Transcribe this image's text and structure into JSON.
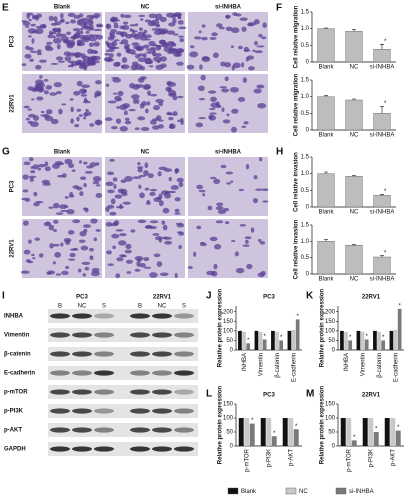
{
  "panel_labels": [
    "E",
    "F",
    "G",
    "H",
    "I",
    "J",
    "K",
    "L",
    "M"
  ],
  "micrographs": {
    "E": {
      "columns": [
        "Blank",
        "NC",
        "si-INHBA"
      ],
      "rows": [
        "PC3",
        "22RV1"
      ]
    },
    "G": {
      "columns": [
        "Blank",
        "NC",
        "si-INHBA"
      ],
      "rows": [
        "PC3",
        "22RV1"
      ]
    }
  },
  "blot": {
    "cell_lines": [
      "PC3",
      "22RV1"
    ],
    "lanes": [
      "B",
      "NC",
      "S",
      "B",
      "NC",
      "S"
    ],
    "proteins": [
      "INHBA",
      "Vimentin",
      "β-catenin",
      "E-cadherin",
      "p-mTOR",
      "p-PI3K",
      "p-AKT",
      "GAPDH"
    ]
  },
  "legend": [
    {
      "name": "Blank",
      "color": "#111111"
    },
    {
      "name": "NC",
      "color": "#c8c8c8"
    },
    {
      "name": "si-INHBA",
      "color": "#7a7a7a"
    }
  ],
  "chart_data": [
    {
      "type": "bar",
      "ylabel": "Cell relative migration",
      "categories": [
        "Blank",
        "NC",
        "si-INHBA"
      ],
      "values": [
        1.0,
        0.92,
        0.38
      ],
      "errors": [
        0.02,
        0.05,
        0.15
      ],
      "annotation": "*",
      "color": "#bdbdbd",
      "ylim": [
        0,
        1.5
      ],
      "yticks": [
        0,
        0.5,
        {
          "value": 1,
          "label": "1.0"
        },
        1.5
      ]
    },
    {
      "type": "bar",
      "ylabel": "Cell relative migration",
      "categories": [
        "Blank",
        "NC",
        "si-INHBA"
      ],
      "values": [
        1.0,
        0.9,
        0.5
      ],
      "errors": [
        0.03,
        0.03,
        0.2
      ],
      "annotation": "*",
      "color": "#bdbdbd",
      "ylim": [
        0,
        1.5
      ],
      "yticks": [
        0,
        0.5,
        {
          "value": 1,
          "label": "1.0"
        },
        1.5
      ]
    },
    {
      "type": "bar",
      "ylabel": "Cell relative invasion",
      "categories": [
        "Blank",
        "NC",
        "si-INHBA"
      ],
      "values": [
        1.0,
        0.92,
        0.35
      ],
      "errors": [
        0.05,
        0.02,
        0.03
      ],
      "annotation": "*",
      "color": "#bdbdbd",
      "ylim": [
        0,
        1.5
      ],
      "yticks": [
        0,
        0.5,
        {
          "value": 1,
          "label": "1.0"
        },
        1.5
      ]
    },
    {
      "type": "bar",
      "ylabel": "Cell relative invasion",
      "categories": [
        "Blank",
        "NC",
        "si-INHBA"
      ],
      "values": [
        1.0,
        0.88,
        0.52
      ],
      "errors": [
        0.05,
        0.02,
        0.04
      ],
      "annotation": "*",
      "color": "#bdbdbd",
      "ylim": [
        0,
        1.5
      ],
      "yticks": [
        0,
        0.5,
        {
          "value": 1,
          "label": "1.0"
        },
        1.5
      ]
    },
    {
      "type": "grouped_bar",
      "title": "PC3",
      "ylabel": "Relative protein expression",
      "categories": [
        "INHBA",
        "Vimentin",
        "β-catenin",
        "E-cadherin"
      ],
      "annotation": "*",
      "series": [
        {
          "values": [
            100,
            100,
            100,
            100
          ]
        },
        {
          "values": [
            95,
            95,
            95,
            105
          ]
        },
        {
          "values": [
            35,
            55,
            50,
            160
          ]
        }
      ],
      "ylim": [
        0,
        230
      ],
      "yticks": [
        0,
        50,
        100,
        150,
        200
      ]
    },
    {
      "type": "grouped_bar",
      "title": "22RV1",
      "ylabel": "Relative protein expression",
      "categories": [
        "INHBA",
        "Vimentin",
        "β-catenin",
        "E-cadherin"
      ],
      "annotation": "*",
      "series": [
        {
          "values": [
            100,
            100,
            100,
            100
          ]
        },
        {
          "values": [
            95,
            95,
            95,
            105
          ]
        },
        {
          "values": [
            50,
            55,
            50,
            215
          ]
        }
      ],
      "ylim": [
        0,
        230
      ],
      "yticks": [
        0,
        50,
        100,
        150,
        200
      ]
    },
    {
      "type": "grouped_bar",
      "title": "PC3",
      "ylabel": "Relative protein expression",
      "categories": [
        "p-mTOR",
        "p-PI3K",
        "p-AKT"
      ],
      "annotation": "*",
      "series": [
        {
          "values": [
            100,
            100,
            100
          ]
        },
        {
          "values": [
            100,
            100,
            100
          ]
        },
        {
          "values": [
            80,
            35,
            60
          ]
        }
      ],
      "ylim": [
        0,
        150
      ],
      "yticks": [
        0,
        50,
        100,
        150
      ]
    },
    {
      "type": "grouped_bar",
      "title": "22RV1",
      "ylabel": "Relative protein expression",
      "categories": [
        "p-mTOR",
        "p-PI3K",
        "p-AKT"
      ],
      "annotation": "*",
      "series": [
        {
          "values": [
            100,
            100,
            100
          ]
        },
        {
          "values": [
            100,
            100,
            100
          ]
        },
        {
          "values": [
            20,
            50,
            55
          ]
        }
      ],
      "ylim": [
        0,
        150
      ],
      "yticks": [
        0,
        50,
        100,
        150
      ]
    }
  ]
}
